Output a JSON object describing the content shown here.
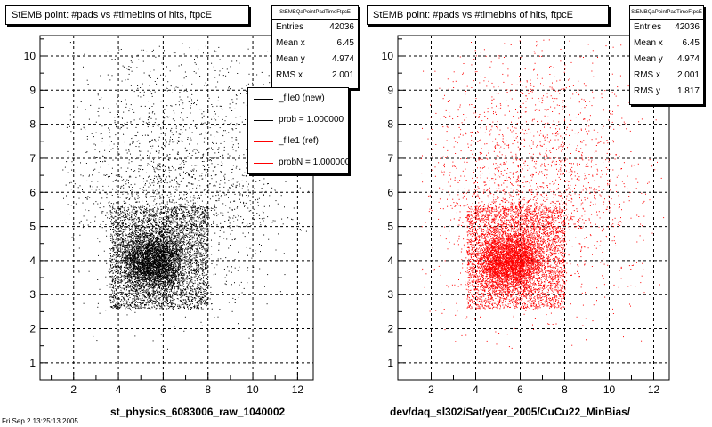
{
  "colors": {
    "black": "#000000",
    "red": "#ff0000",
    "frame": "#000000"
  },
  "panels": [
    {
      "title": "StEMB point: #pads vs #timebins of hits, ftpcE",
      "stats": {
        "header": "StEMBQaPointPadTimeFtpcE",
        "rows": [
          {
            "k": "Entries",
            "v": "42036"
          },
          {
            "k": "Mean x",
            "v": "6.45"
          },
          {
            "k": "Mean y",
            "v": "4.974"
          },
          {
            "k": "RMS x",
            "v": "2.001"
          }
        ]
      },
      "legend": [
        {
          "label": "_file0 (new)",
          "color": "#000000"
        },
        {
          "label": "prob = 1.000000",
          "color": "#000000"
        },
        {
          "label": "_file1 (ref)",
          "color": "#ff0000"
        },
        {
          "label": "probN = 1.000000",
          "color": "#ff0000"
        }
      ],
      "xlabel": "st_physics_6083006_raw_1040002"
    },
    {
      "title": "StEMB point: #pads vs #timebins of hits, ftpcE",
      "stats": {
        "header": "StEMBQaPointPadTimeFtpcE",
        "rows": [
          {
            "k": "Entries",
            "v": "42036"
          },
          {
            "k": "Mean x",
            "v": "6.45"
          },
          {
            "k": "Mean y",
            "v": "4.974"
          },
          {
            "k": "RMS x",
            "v": "2.001"
          },
          {
            "k": "RMS y",
            "v": "1.817"
          }
        ]
      },
      "xlabel": "dev/daq_sl302/Sat/year_2005/CuCu22_MinBias/"
    }
  ],
  "corner_text": "Fri Sep 2 13:25:13 2005",
  "chart_data": [
    {
      "type": "scatter",
      "title": "StEMB point: #pads vs #timebins of hits, ftpcE",
      "xlabel": "st_physics_6083006_raw_1040002",
      "ylabel": "",
      "xlim": [
        0.5,
        12.7
      ],
      "ylim": [
        0.5,
        10.6
      ],
      "xticks": [
        2,
        4,
        6,
        8,
        10,
        12
      ],
      "yticks": [
        1,
        2,
        3,
        4,
        5,
        6,
        7,
        8,
        9,
        10
      ],
      "grid": true,
      "series": [
        {
          "name": "_file0 (new)",
          "color": "#000000",
          "entries": 42036,
          "mean_x": 6.45,
          "mean_y": 4.974,
          "rms_x": 2.001,
          "rms_y": 1.817,
          "density_core": {
            "x": [
              3.6,
              8.0
            ],
            "y": [
              2.6,
              5.6
            ]
          },
          "dense_peak": {
            "x": [
              4.5,
              6.5
            ],
            "y": [
              3.5,
              4.5
            ]
          }
        }
      ],
      "legend_position": "top-right"
    },
    {
      "type": "scatter",
      "title": "StEMB point: #pads vs #timebins of hits, ftpcE",
      "xlabel": "dev/daq_sl302/Sat/year_2005/CuCu22_MinBias/",
      "ylabel": "",
      "xlim": [
        0.5,
        12.7
      ],
      "ylim": [
        0.5,
        10.6
      ],
      "xticks": [
        2,
        4,
        6,
        8,
        10,
        12
      ],
      "yticks": [
        1,
        2,
        3,
        4,
        5,
        6,
        7,
        8,
        9,
        10
      ],
      "grid": true,
      "series": [
        {
          "name": "_file1 (ref)",
          "color": "#ff0000",
          "entries": 42036,
          "mean_x": 6.45,
          "mean_y": 4.974,
          "rms_x": 2.001,
          "rms_y": 1.817,
          "density_core": {
            "x": [
              3.6,
              8.0
            ],
            "y": [
              2.6,
              5.6
            ]
          },
          "dense_peak": {
            "x": [
              4.5,
              6.5
            ],
            "y": [
              3.5,
              4.5
            ]
          }
        }
      ]
    }
  ]
}
